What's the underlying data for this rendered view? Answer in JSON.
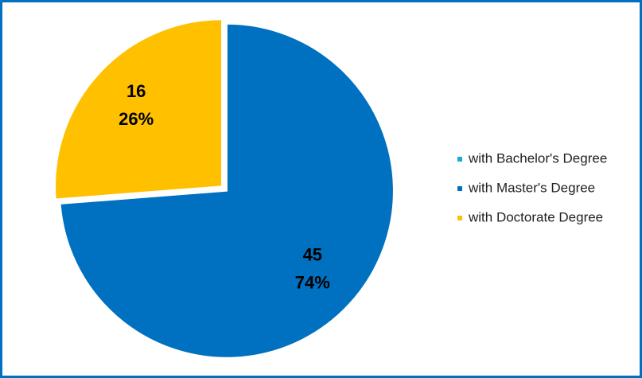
{
  "chart_data": {
    "type": "pie",
    "categories": [
      "with Bachelor's Degree",
      "with Master's Degree",
      "with Doctorate Degree"
    ],
    "values": [
      0,
      45,
      16
    ],
    "percent_labels": [
      null,
      "74%",
      "26%"
    ],
    "colors": [
      "#1ba7d9",
      "#0070c0",
      "#ffc000"
    ],
    "legend": "right"
  }
}
